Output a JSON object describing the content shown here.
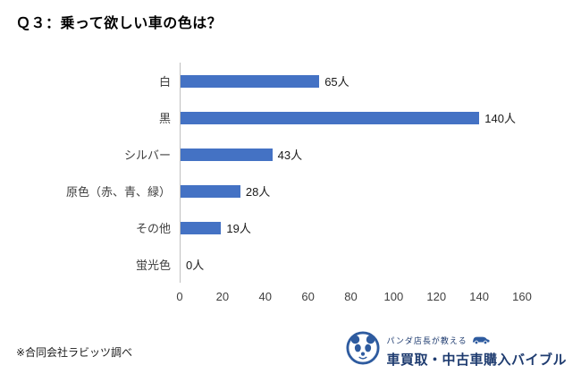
{
  "title": "Ｑ３：乗って欲しい車の色は？",
  "chart_data": {
    "type": "bar",
    "orientation": "horizontal",
    "title": "Ｑ３：乗って欲しい車の色は？",
    "categories": [
      "白",
      "黒",
      "シルバー",
      "原色（赤、青、緑）",
      "その他",
      "蛍光色"
    ],
    "values": [
      65,
      140,
      43,
      28,
      19,
      0
    ],
    "value_labels": [
      "65人",
      "140人",
      "43人",
      "28人",
      "19人",
      "0人"
    ],
    "xlabel": "",
    "ylabel": "",
    "xlim": [
      0,
      160
    ],
    "xticks": [
      0,
      20,
      40,
      60,
      80,
      100,
      120,
      140,
      160
    ],
    "bar_color": "#4472C4",
    "grid": false,
    "legend": false
  },
  "footer": {
    "note": "※合同会社ラビッツ調べ",
    "logo": {
      "tagline": "パンダ店長が教える",
      "title": "車買取・中古車購入バイブル"
    }
  }
}
